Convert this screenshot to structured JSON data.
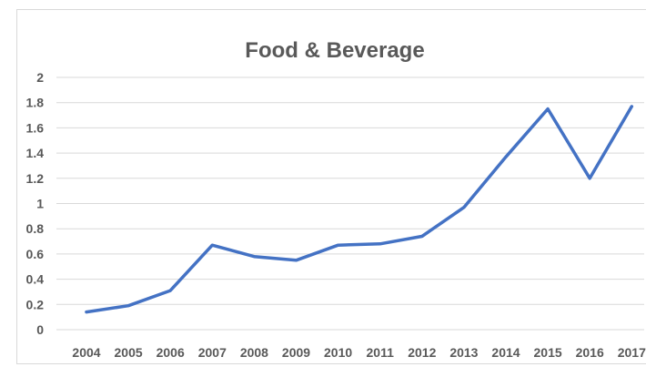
{
  "chart_data": {
    "type": "line",
    "title": "Food & Beverage",
    "xlabel": "",
    "ylabel": "",
    "categories": [
      "2004",
      "2005",
      "2006",
      "2007",
      "2008",
      "2009",
      "2010",
      "2011",
      "2012",
      "2013",
      "2014",
      "2015",
      "2016",
      "2017"
    ],
    "series": [
      {
        "values": [
          0.14,
          0.19,
          0.31,
          0.67,
          0.58,
          0.55,
          0.67,
          0.68,
          0.74,
          0.97,
          1.37,
          1.75,
          1.2,
          1.77
        ]
      }
    ],
    "ylim": [
      0,
      2
    ],
    "yticks": [
      "0",
      "0.2",
      "0.4",
      "0.6",
      "0.8",
      "1",
      "1.2",
      "1.4",
      "1.6",
      "1.8",
      "2"
    ],
    "grid": true,
    "legend": "none",
    "colors": {
      "line": "#4472C4",
      "grid": "#d9d9d9",
      "text": "#595959"
    }
  }
}
